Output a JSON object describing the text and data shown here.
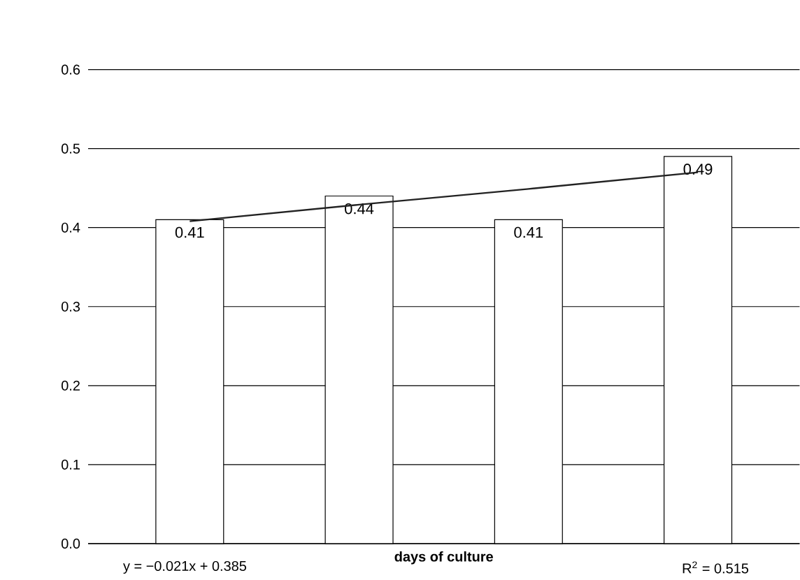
{
  "chart_data": {
    "type": "bar",
    "xlabel": "days of culture",
    "categories": [
      null,
      null,
      null,
      null
    ],
    "series": [
      {
        "color": "#ffffff",
        "values": [
          0.41,
          0.44,
          0.41,
          0.49
        ],
        "value_labels": [
          "0.41",
          "0.44",
          "0.41",
          "0.49"
        ]
      },
      {
        "type": "line",
        "color": "#222222",
        "values": [
          0.408,
          0.429,
          0.449,
          0.47
        ]
      }
    ],
    "ylim": [
      0,
      0.6
    ],
    "yticks": [
      {
        "value": 0,
        "label": "0.0"
      },
      {
        "value": 0.1,
        "label": "0.1"
      },
      {
        "value": 0.2,
        "label": "0.2"
      },
      {
        "value": 0.3,
        "label": "0.3"
      },
      {
        "value": 0.4,
        "label": "0.4"
      },
      {
        "value": 0.5,
        "label": "0.5"
      },
      {
        "value": 0.6,
        "label": "0.6"
      }
    ],
    "grid": "y",
    "annotations": [
      "y = −0.021x + 0.385",
      "R$^{2}$ = 0.515"
    ]
  }
}
